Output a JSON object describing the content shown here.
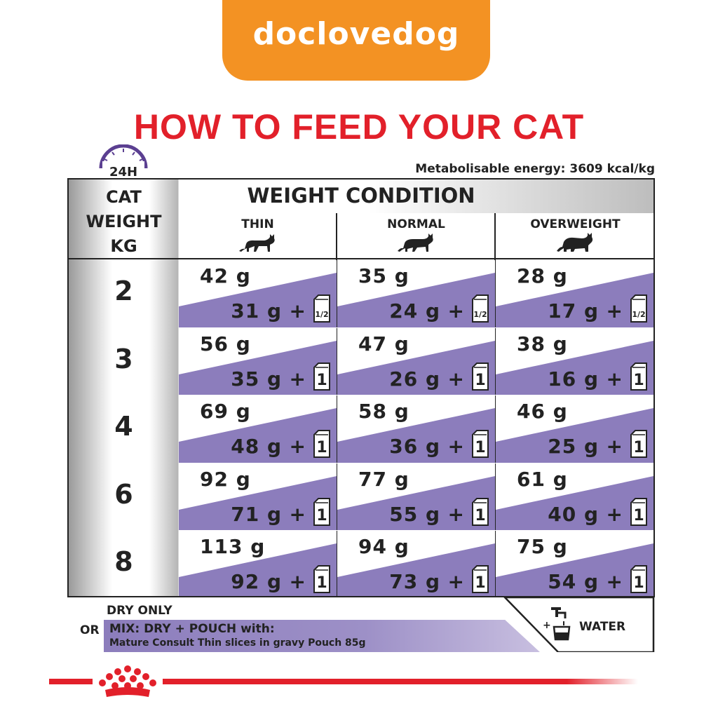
{
  "brand": {
    "name": "doclovedog"
  },
  "title": "HOW TO FEED YOUR CAT",
  "clock_label": "24H",
  "energy": "Metabolisable energy: 3609 kcal/kg",
  "header": {
    "weight_condition": "WEIGHT CONDITION",
    "cat_weight_lines": [
      "CAT",
      "WEIGHT",
      "KG"
    ],
    "columns": [
      "THIN",
      "NORMAL",
      "OVERWEIGHT"
    ]
  },
  "rows": [
    {
      "weight": "2",
      "cells": [
        {
          "dry": "42 g",
          "mix": "31 g",
          "pouch": "1/2"
        },
        {
          "dry": "35 g",
          "mix": "24 g",
          "pouch": "1/2"
        },
        {
          "dry": "28 g",
          "mix": "17 g",
          "pouch": "1/2"
        }
      ]
    },
    {
      "weight": "3",
      "cells": [
        {
          "dry": "56 g",
          "mix": "35 g",
          "pouch": "1"
        },
        {
          "dry": "47 g",
          "mix": "26 g",
          "pouch": "1"
        },
        {
          "dry": "38 g",
          "mix": "16 g",
          "pouch": "1"
        }
      ]
    },
    {
      "weight": "4",
      "cells": [
        {
          "dry": "69 g",
          "mix": "48 g",
          "pouch": "1"
        },
        {
          "dry": "58 g",
          "mix": "36 g",
          "pouch": "1"
        },
        {
          "dry": "46 g",
          "mix": "25 g",
          "pouch": "1"
        }
      ]
    },
    {
      "weight": "6",
      "cells": [
        {
          "dry": "92 g",
          "mix": "71 g",
          "pouch": "1"
        },
        {
          "dry": "77 g",
          "mix": "55 g",
          "pouch": "1"
        },
        {
          "dry": "61 g",
          "mix": "40 g",
          "pouch": "1"
        }
      ]
    },
    {
      "weight": "8",
      "cells": [
        {
          "dry": "113 g",
          "mix": "92 g",
          "pouch": "1"
        },
        {
          "dry": "94 g",
          "mix": "73 g",
          "pouch": "1"
        },
        {
          "dry": "75 g",
          "mix": "54 g",
          "pouch": "1"
        }
      ]
    }
  ],
  "plus_sign": "+",
  "legend": {
    "dry_only": "DRY ONLY",
    "or": "OR",
    "mix_line1": "MIX: DRY + POUCH with:",
    "mix_line2": "Mature Consult Thin slices in gravy Pouch 85g",
    "water_plus": "+",
    "water": "WATER"
  },
  "colors": {
    "accent_red": "#e2202a",
    "brand_orange": "#f39223",
    "purple": "#8c7dbc",
    "clock_purple": "#5b3f91"
  }
}
